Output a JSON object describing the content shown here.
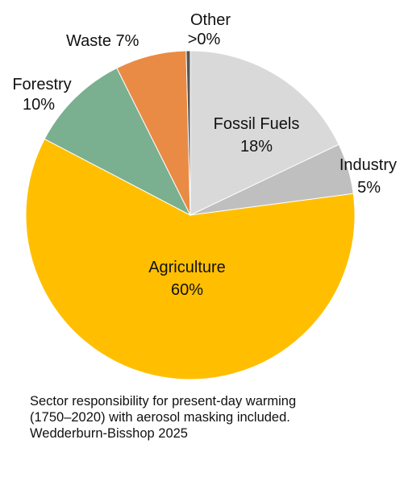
{
  "chart_data": {
    "type": "pie",
    "title": "",
    "start_angle_deg": 0,
    "direction": "clockwise",
    "slices": [
      {
        "name": "Fossil Fuels",
        "value": 18,
        "value_label": "18%",
        "color": "#d9d9d9"
      },
      {
        "name": "Industry",
        "value": 5,
        "value_label": "5%",
        "color": "#bfbfbf"
      },
      {
        "name": "Agriculture",
        "value": 60,
        "value_label": "60%",
        "color": "#ffbf00"
      },
      {
        "name": "Forestry",
        "value": 10,
        "value_label": "10%",
        "color": "#7aaf8f"
      },
      {
        "name": "Waste",
        "value": 7,
        "value_label": "7%",
        "color": "#e98b45"
      },
      {
        "name": "Other",
        "value": 0.4,
        "value_label": ">0%",
        "color": "#555555"
      }
    ],
    "caption": [
      "Sector responsibility for present-day warming",
      "(1750–2020) with aerosol masking included.",
      "Wedderburn-Bisshop 2025"
    ]
  }
}
